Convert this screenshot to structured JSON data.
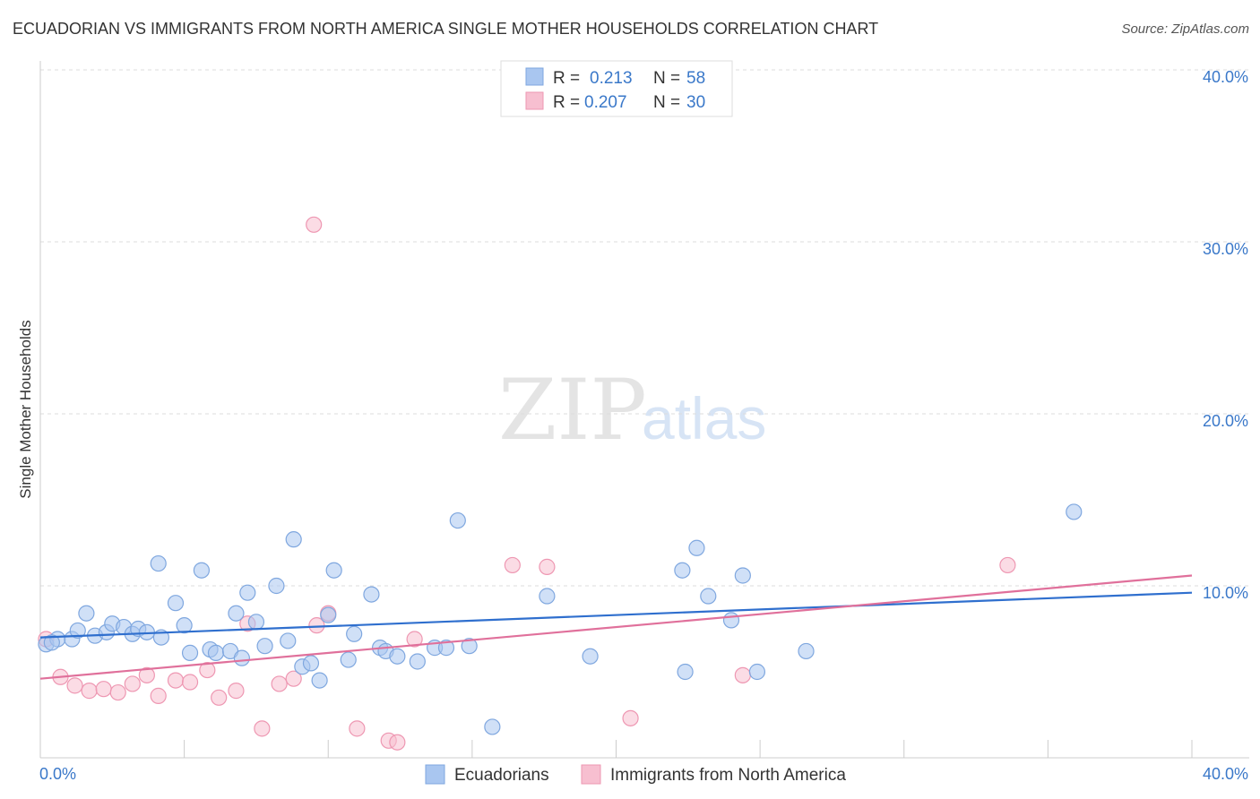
{
  "title": "ECUADORIAN VS IMMIGRANTS FROM NORTH AMERICA SINGLE MOTHER HOUSEHOLDS CORRELATION CHART",
  "source": "Source: ZipAtlas.com",
  "watermark": {
    "zip": "ZIP",
    "atlas": "atlas"
  },
  "colors": {
    "blue_fill": "#a9c6f0",
    "blue_stroke": "#7fa7df",
    "blue_line": "#2f6fce",
    "pink_fill": "#f7bfd0",
    "pink_stroke": "#ee97b2",
    "pink_line": "#e0709b",
    "tick_text": "#3a78c9",
    "grid": "#dddddd"
  },
  "legend": {
    "rows": [
      {
        "r_label": "R =",
        "r_value": "0.213",
        "n_label": "N =",
        "n_value": "58"
      },
      {
        "r_label": "R =",
        "r_value": "0.207",
        "n_label": "N =",
        "n_value": "30"
      }
    ]
  },
  "bottom_legend": [
    "Ecuadorians",
    "Immigrants from North America"
  ],
  "chart_data": {
    "type": "scatter",
    "title": "ECUADORIAN VS IMMIGRANTS FROM NORTH AMERICA SINGLE MOTHER HOUSEHOLDS CORRELATION CHART",
    "xlabel": "",
    "ylabel": "Single Mother Households",
    "xlim": [
      0,
      40
    ],
    "ylim": [
      0,
      40
    ],
    "x_tick_labels": [
      "0.0%",
      "40.0%"
    ],
    "y_ticks": [
      10,
      20,
      30,
      40
    ],
    "y_tick_labels": [
      "10.0%",
      "20.0%",
      "30.0%",
      "40.0%"
    ],
    "grid": true,
    "series": [
      {
        "name": "Ecuadorians",
        "r": 0.213,
        "n": 58,
        "trend": [
          [
            0,
            7.0
          ],
          [
            40,
            9.6
          ]
        ],
        "points": [
          [
            0.2,
            6.6
          ],
          [
            0.6,
            6.9
          ],
          [
            1.1,
            6.9
          ],
          [
            1.3,
            7.4
          ],
          [
            1.6,
            8.4
          ],
          [
            1.9,
            7.1
          ],
          [
            2.3,
            7.3
          ],
          [
            2.5,
            7.8
          ],
          [
            2.9,
            7.6
          ],
          [
            3.2,
            7.2
          ],
          [
            3.4,
            7.5
          ],
          [
            3.7,
            7.3
          ],
          [
            4.1,
            11.3
          ],
          [
            4.2,
            7.0
          ],
          [
            4.7,
            9.0
          ],
          [
            5.0,
            7.7
          ],
          [
            5.2,
            6.1
          ],
          [
            5.6,
            10.9
          ],
          [
            5.9,
            6.3
          ],
          [
            6.1,
            6.1
          ],
          [
            6.6,
            6.2
          ],
          [
            6.8,
            8.4
          ],
          [
            7.0,
            5.8
          ],
          [
            7.2,
            9.6
          ],
          [
            7.5,
            7.9
          ],
          [
            7.8,
            6.5
          ],
          [
            8.2,
            10.0
          ],
          [
            8.6,
            6.8
          ],
          [
            8.8,
            12.7
          ],
          [
            9.1,
            5.3
          ],
          [
            9.4,
            5.5
          ],
          [
            9.7,
            4.5
          ],
          [
            10.0,
            8.3
          ],
          [
            10.2,
            10.9
          ],
          [
            10.7,
            5.7
          ],
          [
            10.9,
            7.2
          ],
          [
            11.5,
            9.5
          ],
          [
            11.8,
            6.4
          ],
          [
            12.0,
            6.2
          ],
          [
            12.4,
            5.9
          ],
          [
            13.1,
            5.6
          ],
          [
            13.7,
            6.4
          ],
          [
            14.1,
            6.4
          ],
          [
            14.5,
            13.8
          ],
          [
            14.9,
            6.5
          ],
          [
            15.7,
            1.8
          ],
          [
            17.6,
            9.4
          ],
          [
            19.1,
            5.9
          ],
          [
            22.3,
            10.9
          ],
          [
            22.4,
            5.0
          ],
          [
            22.8,
            12.2
          ],
          [
            23.2,
            9.4
          ],
          [
            24.0,
            8.0
          ],
          [
            24.4,
            10.6
          ],
          [
            24.9,
            5.0
          ],
          [
            26.6,
            6.2
          ],
          [
            35.9,
            14.3
          ],
          [
            0.4,
            6.7
          ]
        ]
      },
      {
        "name": "Immigrants from North America",
        "r": 0.207,
        "n": 30,
        "trend": [
          [
            0,
            4.6
          ],
          [
            40,
            10.6
          ]
        ],
        "points": [
          [
            0.2,
            6.9
          ],
          [
            0.7,
            4.7
          ],
          [
            1.2,
            4.2
          ],
          [
            1.7,
            3.9
          ],
          [
            2.2,
            4.0
          ],
          [
            2.7,
            3.8
          ],
          [
            3.2,
            4.3
          ],
          [
            3.7,
            4.8
          ],
          [
            4.1,
            3.6
          ],
          [
            4.7,
            4.5
          ],
          [
            5.2,
            4.4
          ],
          [
            5.8,
            5.1
          ],
          [
            6.2,
            3.5
          ],
          [
            6.8,
            3.9
          ],
          [
            7.2,
            7.8
          ],
          [
            7.7,
            1.7
          ],
          [
            8.3,
            4.3
          ],
          [
            8.8,
            4.6
          ],
          [
            9.5,
            31.0
          ],
          [
            9.6,
            7.7
          ],
          [
            10.0,
            8.4
          ],
          [
            11.0,
            1.7
          ],
          [
            12.1,
            1.0
          ],
          [
            12.4,
            0.9
          ],
          [
            13.0,
            6.9
          ],
          [
            16.4,
            11.2
          ],
          [
            17.6,
            11.1
          ],
          [
            20.5,
            2.3
          ],
          [
            24.4,
            4.8
          ],
          [
            33.6,
            11.2
          ]
        ]
      }
    ]
  }
}
